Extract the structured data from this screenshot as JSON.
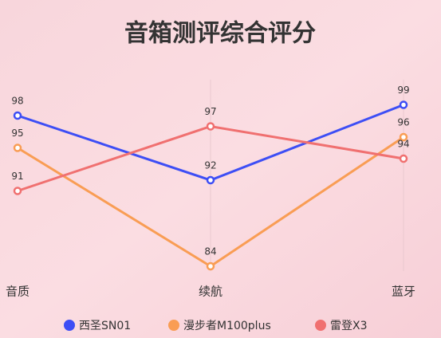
{
  "chart_data": {
    "type": "line",
    "title": "音箱测评综合评分",
    "categories": [
      "音质",
      "续航",
      "蓝牙"
    ],
    "series": [
      {
        "name": "西圣SN01",
        "color": "#3d4ef5",
        "values": [
          98,
          92,
          99
        ]
      },
      {
        "name": "漫步者M100plus",
        "color": "#f99d54",
        "values": [
          95,
          84,
          96
        ]
      },
      {
        "name": "雷登X3",
        "color": "#f07070",
        "values": [
          91,
          97,
          94
        ]
      }
    ],
    "ylim": [
      80,
      100
    ],
    "grid": true,
    "legend": "bottom"
  }
}
